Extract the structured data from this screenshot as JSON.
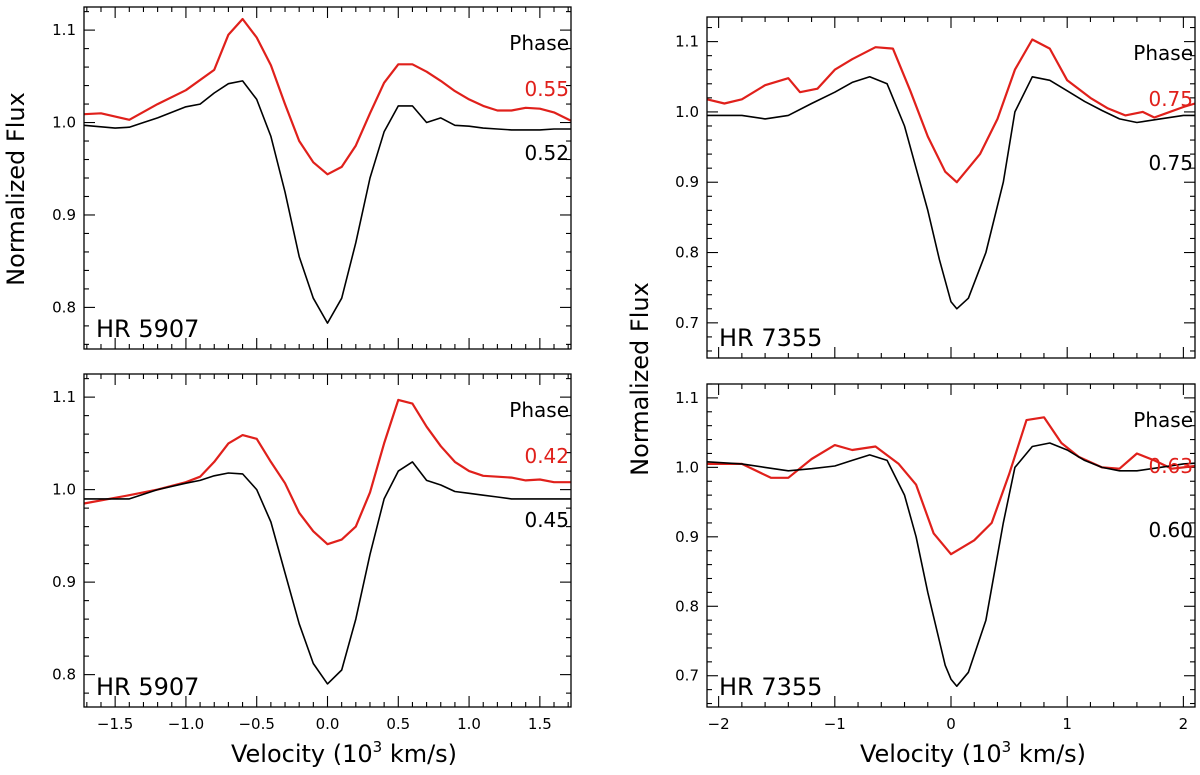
{
  "figure": {
    "ylabel": "Normalized Flux",
    "xlabel_prefix": "Velocity (10",
    "xlabel_exp": "3",
    "xlabel_suffix": " km/s)",
    "phase_title": "Phase",
    "colors": {
      "model": "#e0201b",
      "observed": "#000000",
      "frame": "#000000"
    }
  },
  "chart_data": [
    {
      "type": "line",
      "id": "hr5907-top",
      "star": "HR 5907",
      "xlim": [
        -1.72,
        1.72
      ],
      "ylim": [
        0.755,
        1.125
      ],
      "x_ticks": [
        -1.5,
        -1.0,
        -0.5,
        0.0,
        0.5,
        1.0,
        1.5
      ],
      "x_tick_labels": [
        "−1.5",
        "−1.0",
        "−0.5",
        "0.0",
        "0.5",
        "1.0",
        "1.5"
      ],
      "y_ticks": [
        0.8,
        0.9,
        1.0,
        1.1
      ],
      "y_tick_labels": [
        "0.8",
        "0.9",
        "1.0",
        "1.1"
      ],
      "x_minor_step": 0.1,
      "y_minor_step": 0.02,
      "show_x_tick_labels": false,
      "phase_model": "0.55",
      "phase_observed": "0.52",
      "series": [
        {
          "name": "model",
          "x": [
            -1.72,
            -1.6,
            -1.4,
            -1.2,
            -1.0,
            -0.8,
            -0.7,
            -0.6,
            -0.5,
            -0.4,
            -0.3,
            -0.2,
            -0.1,
            0.0,
            0.1,
            0.2,
            0.3,
            0.4,
            0.5,
            0.6,
            0.7,
            0.8,
            0.9,
            1.0,
            1.1,
            1.2,
            1.3,
            1.4,
            1.5,
            1.6,
            1.72
          ],
          "y": [
            1.009,
            1.01,
            1.003,
            1.02,
            1.035,
            1.057,
            1.095,
            1.112,
            1.092,
            1.062,
            1.02,
            0.98,
            0.957,
            0.944,
            0.952,
            0.975,
            1.01,
            1.043,
            1.063,
            1.063,
            1.055,
            1.045,
            1.034,
            1.025,
            1.018,
            1.013,
            1.013,
            1.016,
            1.015,
            1.011,
            1.002
          ]
        },
        {
          "name": "observed",
          "x": [
            -1.72,
            -1.5,
            -1.4,
            -1.3,
            -1.2,
            -1.0,
            -0.9,
            -0.8,
            -0.7,
            -0.6,
            -0.5,
            -0.4,
            -0.3,
            -0.2,
            -0.1,
            0.0,
            0.1,
            0.2,
            0.3,
            0.4,
            0.5,
            0.6,
            0.7,
            0.8,
            0.9,
            1.0,
            1.1,
            1.2,
            1.3,
            1.4,
            1.5,
            1.6,
            1.72
          ],
          "y": [
            0.997,
            0.994,
            0.995,
            1.0,
            1.005,
            1.017,
            1.02,
            1.032,
            1.042,
            1.045,
            1.025,
            0.985,
            0.925,
            0.855,
            0.81,
            0.783,
            0.81,
            0.87,
            0.94,
            0.99,
            1.018,
            1.018,
            1.0,
            1.005,
            0.997,
            0.996,
            0.994,
            0.993,
            0.992,
            0.992,
            0.992,
            0.993,
            0.993
          ]
        }
      ]
    },
    {
      "type": "line",
      "id": "hr5907-bottom",
      "star": "HR 5907",
      "xlim": [
        -1.72,
        1.72
      ],
      "ylim": [
        0.765,
        1.125
      ],
      "x_ticks": [
        -1.5,
        -1.0,
        -0.5,
        0.0,
        0.5,
        1.0,
        1.5
      ],
      "x_tick_labels": [
        "−1.5",
        "−1.0",
        "−0.5",
        "0.0",
        "0.5",
        "1.0",
        "1.5"
      ],
      "y_ticks": [
        0.8,
        0.9,
        1.0,
        1.1
      ],
      "y_tick_labels": [
        "0.8",
        "0.9",
        "1.0",
        "1.1"
      ],
      "x_minor_step": 0.1,
      "y_minor_step": 0.02,
      "show_x_tick_labels": true,
      "phase_model": "0.42",
      "phase_observed": "0.45",
      "series": [
        {
          "name": "model",
          "x": [
            -1.72,
            -1.4,
            -1.2,
            -1.0,
            -0.9,
            -0.8,
            -0.7,
            -0.6,
            -0.5,
            -0.4,
            -0.3,
            -0.2,
            -0.1,
            0.0,
            0.1,
            0.2,
            0.3,
            0.4,
            0.5,
            0.6,
            0.7,
            0.8,
            0.9,
            1.0,
            1.1,
            1.2,
            1.3,
            1.4,
            1.5,
            1.6,
            1.72
          ],
          "y": [
            0.985,
            0.994,
            1.0,
            1.008,
            1.014,
            1.03,
            1.05,
            1.059,
            1.055,
            1.03,
            1.007,
            0.975,
            0.955,
            0.941,
            0.946,
            0.96,
            0.997,
            1.05,
            1.097,
            1.093,
            1.068,
            1.047,
            1.03,
            1.02,
            1.015,
            1.014,
            1.013,
            1.01,
            1.011,
            1.008,
            1.008
          ]
        },
        {
          "name": "observed",
          "x": [
            -1.72,
            -1.5,
            -1.4,
            -1.3,
            -1.2,
            -1.0,
            -0.9,
            -0.8,
            -0.7,
            -0.6,
            -0.5,
            -0.4,
            -0.3,
            -0.2,
            -0.1,
            0.0,
            0.1,
            0.2,
            0.3,
            0.4,
            0.5,
            0.6,
            0.7,
            0.8,
            0.9,
            1.0,
            1.1,
            1.2,
            1.3,
            1.4,
            1.5,
            1.6,
            1.72
          ],
          "y": [
            0.99,
            0.99,
            0.99,
            0.995,
            1.0,
            1.007,
            1.01,
            1.015,
            1.018,
            1.017,
            1.0,
            0.965,
            0.91,
            0.855,
            0.812,
            0.79,
            0.805,
            0.86,
            0.93,
            0.99,
            1.02,
            1.03,
            1.01,
            1.005,
            0.998,
            0.996,
            0.994,
            0.992,
            0.99,
            0.99,
            0.99,
            0.99,
            0.99
          ]
        }
      ]
    },
    {
      "type": "line",
      "id": "hr7355-top",
      "star": "HR 7355",
      "xlim": [
        -2.1,
        2.1
      ],
      "ylim": [
        0.65,
        1.135
      ],
      "x_ticks": [
        -2,
        -1,
        0,
        1,
        2
      ],
      "x_tick_labels": [
        "−2",
        "−1",
        "0",
        "1",
        "2"
      ],
      "y_ticks": [
        0.7,
        0.8,
        0.9,
        1.0,
        1.1
      ],
      "y_tick_labels": [
        "0.7",
        "0.8",
        "0.9",
        "1.0",
        "1.1"
      ],
      "x_minor_step": 0.2,
      "y_minor_step": 0.02,
      "show_x_tick_labels": false,
      "phase_model": "0.75",
      "phase_observed": "0.75",
      "series": [
        {
          "name": "model",
          "x": [
            -2.1,
            -1.95,
            -1.8,
            -1.6,
            -1.4,
            -1.3,
            -1.15,
            -1.0,
            -0.85,
            -0.65,
            -0.5,
            -0.35,
            -0.2,
            -0.05,
            0.05,
            0.15,
            0.25,
            0.4,
            0.55,
            0.7,
            0.85,
            1.0,
            1.2,
            1.35,
            1.5,
            1.65,
            1.75,
            1.85,
            2.0,
            2.1
          ],
          "y": [
            1.018,
            1.012,
            1.018,
            1.038,
            1.048,
            1.028,
            1.033,
            1.06,
            1.075,
            1.092,
            1.09,
            1.03,
            0.965,
            0.915,
            0.9,
            0.92,
            0.94,
            0.99,
            1.06,
            1.103,
            1.09,
            1.045,
            1.02,
            1.005,
            0.995,
            1.0,
            0.992,
            0.998,
            1.007,
            1.012
          ]
        },
        {
          "name": "observed",
          "x": [
            -2.1,
            -1.8,
            -1.6,
            -1.4,
            -1.2,
            -1.0,
            -0.85,
            -0.7,
            -0.55,
            -0.4,
            -0.3,
            -0.2,
            -0.1,
            -0.05,
            0.0,
            0.05,
            0.15,
            0.3,
            0.45,
            0.55,
            0.7,
            0.85,
            1.0,
            1.15,
            1.3,
            1.45,
            1.6,
            1.8,
            2.0,
            2.1
          ],
          "y": [
            0.995,
            0.995,
            0.99,
            0.995,
            1.012,
            1.028,
            1.042,
            1.05,
            1.04,
            0.98,
            0.92,
            0.86,
            0.79,
            0.76,
            0.73,
            0.72,
            0.735,
            0.8,
            0.9,
            1.0,
            1.05,
            1.045,
            1.03,
            1.015,
            1.002,
            0.99,
            0.985,
            0.99,
            0.995,
            0.995
          ]
        }
      ]
    },
    {
      "type": "line",
      "id": "hr7355-bottom",
      "star": "HR 7355",
      "xlim": [
        -2.1,
        2.1
      ],
      "ylim": [
        0.655,
        1.12
      ],
      "x_ticks": [
        -2,
        -1,
        0,
        1,
        2
      ],
      "x_tick_labels": [
        "−2",
        "−1",
        "0",
        "1",
        "2"
      ],
      "y_ticks": [
        0.7,
        0.8,
        0.9,
        1.0,
        1.1
      ],
      "y_tick_labels": [
        "0.7",
        "0.8",
        "0.9",
        "1.0",
        "1.1"
      ],
      "x_minor_step": 0.2,
      "y_minor_step": 0.02,
      "show_x_tick_labels": true,
      "phase_model": "0.63",
      "phase_observed": "0.60",
      "series": [
        {
          "name": "model",
          "x": [
            -2.1,
            -1.8,
            -1.55,
            -1.4,
            -1.2,
            -1.0,
            -0.85,
            -0.65,
            -0.45,
            -0.3,
            -0.15,
            0.0,
            0.2,
            0.35,
            0.5,
            0.65,
            0.8,
            0.95,
            1.1,
            1.3,
            1.45,
            1.6,
            1.75,
            1.9,
            2.0,
            2.1
          ],
          "y": [
            1.005,
            1.005,
            0.985,
            0.985,
            1.012,
            1.032,
            1.025,
            1.03,
            1.005,
            0.975,
            0.905,
            0.875,
            0.895,
            0.92,
            0.99,
            1.068,
            1.072,
            1.035,
            1.015,
            1.0,
            0.998,
            1.02,
            1.01,
            0.998,
            1.0,
            1.002
          ]
        },
        {
          "name": "observed",
          "x": [
            -2.1,
            -1.8,
            -1.6,
            -1.4,
            -1.2,
            -1.0,
            -0.85,
            -0.7,
            -0.55,
            -0.4,
            -0.3,
            -0.2,
            -0.1,
            -0.05,
            0.0,
            0.05,
            0.15,
            0.3,
            0.45,
            0.55,
            0.7,
            0.85,
            1.0,
            1.15,
            1.3,
            1.45,
            1.6,
            1.8,
            2.0,
            2.1
          ],
          "y": [
            1.008,
            1.005,
            1.0,
            0.995,
            0.998,
            1.002,
            1.01,
            1.018,
            1.01,
            0.96,
            0.9,
            0.82,
            0.75,
            0.715,
            0.695,
            0.685,
            0.705,
            0.78,
            0.92,
            1.0,
            1.03,
            1.035,
            1.025,
            1.01,
            1.0,
            0.995,
            0.995,
            1.0,
            1.005,
            1.006
          ]
        }
      ]
    }
  ]
}
